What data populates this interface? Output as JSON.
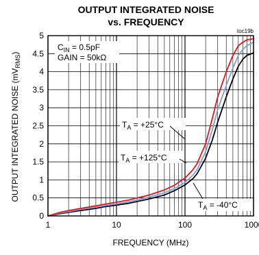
{
  "chart_data": {
    "type": "line",
    "title_line1": "OUTPUT INTEGRATED NOISE",
    "title_line2": "vs. FREQUENCY",
    "figure_id": "toc19b",
    "xlabel": "FREQUENCY (MHz)",
    "ylabel_main": "OUTPUT INTEGRATED NOISE (mV",
    "ylabel_sub": "RMS",
    "ylabel_close": ")",
    "x_scale": "log",
    "xlim": [
      1,
      1000
    ],
    "ylim": [
      0,
      5
    ],
    "grid": true,
    "x_ticks": [
      {
        "value": 1,
        "label": "1"
      },
      {
        "value": 10,
        "label": "10"
      },
      {
        "value": 100,
        "label": "100"
      },
      {
        "value": 1000,
        "label": "1000"
      }
    ],
    "y_ticks": [
      {
        "value": 0,
        "label": "0"
      },
      {
        "value": 0.5,
        "label": "0.5"
      },
      {
        "value": 1,
        "label": "1"
      },
      {
        "value": 1.5,
        "label": "1.5"
      },
      {
        "value": 2,
        "label": "2"
      },
      {
        "value": 2.5,
        "label": "2.5"
      },
      {
        "value": 3,
        "label": "3"
      },
      {
        "value": 3.5,
        "label": "3.5"
      },
      {
        "value": 4,
        "label": "4"
      },
      {
        "value": 4.5,
        "label": "4.5"
      },
      {
        "value": 5,
        "label": "5"
      }
    ],
    "conditions": {
      "cin_main": "C",
      "cin_sub": "IN",
      "cin_value": " = 0.5pF",
      "gain": "GAIN = 50kΩ"
    },
    "series": [
      {
        "key": "ta_25",
        "label_main": "T",
        "label_sub": "A",
        "label_value": " = +25°C",
        "color": "#e8141b",
        "x": [
          1,
          1.5,
          2,
          3,
          5,
          7,
          10,
          15,
          20,
          30,
          50,
          70,
          100,
          130,
          150,
          200,
          250,
          300,
          400,
          500,
          600,
          700,
          800,
          1000
        ],
        "y": [
          0.0,
          0.1,
          0.15,
          0.21,
          0.28,
          0.33,
          0.38,
          0.44,
          0.5,
          0.58,
          0.72,
          0.85,
          1.05,
          1.28,
          1.45,
          2.0,
          2.7,
          3.3,
          4.0,
          4.45,
          4.72,
          4.82,
          4.88,
          4.92
        ]
      },
      {
        "key": "ta_125",
        "label_main": "T",
        "label_sub": "A",
        "label_value": " = +125°C",
        "color": "#7b9ed8",
        "x": [
          1,
          1.5,
          2,
          3,
          5,
          7,
          10,
          15,
          20,
          30,
          50,
          70,
          100,
          130,
          150,
          200,
          250,
          300,
          400,
          500,
          600,
          700,
          800,
          1000
        ],
        "y": [
          0.0,
          0.08,
          0.12,
          0.18,
          0.24,
          0.29,
          0.33,
          0.39,
          0.44,
          0.52,
          0.64,
          0.76,
          0.93,
          1.13,
          1.28,
          1.78,
          2.38,
          2.95,
          3.62,
          4.1,
          4.45,
          4.62,
          4.72,
          4.82
        ]
      },
      {
        "key": "ta_m40",
        "label_main": "T",
        "label_sub": "A",
        "label_value": " = -40°C",
        "color": "#000000",
        "x": [
          1,
          1.5,
          2,
          3,
          5,
          7,
          10,
          15,
          20,
          30,
          50,
          70,
          100,
          130,
          150,
          200,
          250,
          300,
          400,
          500,
          600,
          700,
          800,
          1000
        ],
        "y": [
          0.0,
          0.06,
          0.1,
          0.15,
          0.21,
          0.26,
          0.3,
          0.35,
          0.4,
          0.47,
          0.58,
          0.7,
          0.86,
          1.03,
          1.17,
          1.6,
          2.1,
          2.6,
          3.3,
          3.8,
          4.15,
          4.35,
          4.45,
          4.52
        ]
      }
    ]
  }
}
